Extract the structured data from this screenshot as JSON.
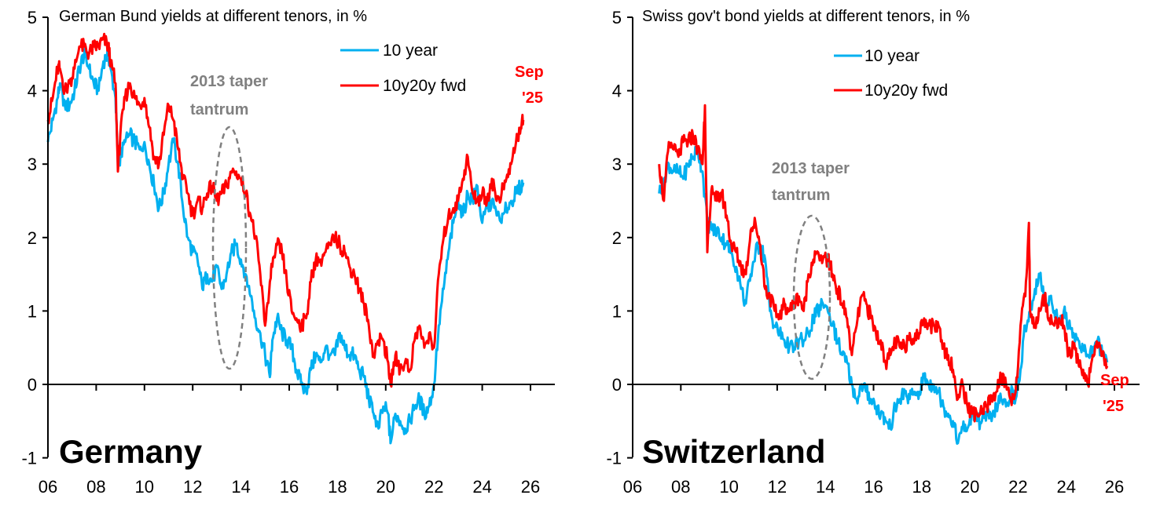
{
  "chart_data": [
    {
      "type": "line",
      "id": "germany",
      "title": "German Bund yields at different tenors, in %",
      "panel_label": "Germany",
      "xlabel": "",
      "ylabel": "",
      "x_ticks": [
        "06",
        "08",
        "10",
        "12",
        "14",
        "16",
        "18",
        "20",
        "22",
        "24",
        "26"
      ],
      "x_tick_years": [
        2006,
        2008,
        2010,
        2012,
        2014,
        2016,
        2018,
        2020,
        2022,
        2024,
        2026
      ],
      "xlim": [
        2006,
        2027
      ],
      "y_ticks": [
        "-1",
        "0",
        "1",
        "2",
        "3",
        "4",
        "5"
      ],
      "ylim": [
        -1,
        5
      ],
      "grid": false,
      "legend": {
        "placement": "top-right",
        "entries": [
          "10 year",
          "10y20y fwd"
        ]
      },
      "annotations": [
        {
          "text_lines": [
            "2013 taper",
            "tantrum"
          ],
          "color": "#808080",
          "target_year": 2013.6,
          "ellipse_y_range": [
            0.2,
            3.5
          ]
        },
        {
          "text_lines": [
            "Sep",
            "'25"
          ],
          "color": "#ff0000"
        }
      ],
      "series": [
        {
          "name": "10 year",
          "color": "#00b0f0",
          "x": [
            2006.0,
            2006.2,
            2006.4,
            2006.5,
            2006.7,
            2006.9,
            2007.1,
            2007.3,
            2007.5,
            2007.7,
            2007.9,
            2008.1,
            2008.3,
            2008.5,
            2008.6,
            2008.8,
            2008.9,
            2009.0,
            2009.2,
            2009.4,
            2009.6,
            2009.8,
            2010.0,
            2010.2,
            2010.4,
            2010.6,
            2010.8,
            2011.0,
            2011.2,
            2011.4,
            2011.6,
            2011.8,
            2012.0,
            2012.2,
            2012.4,
            2012.6,
            2012.8,
            2013.0,
            2013.2,
            2013.4,
            2013.6,
            2013.8,
            2014.0,
            2014.2,
            2014.4,
            2014.6,
            2014.8,
            2015.0,
            2015.2,
            2015.3,
            2015.5,
            2015.7,
            2015.9,
            2016.1,
            2016.3,
            2016.5,
            2016.7,
            2016.9,
            2017.1,
            2017.3,
            2017.5,
            2017.7,
            2017.9,
            2018.1,
            2018.3,
            2018.5,
            2018.7,
            2018.9,
            2019.1,
            2019.3,
            2019.5,
            2019.7,
            2019.9,
            2020.1,
            2020.2,
            2020.4,
            2020.6,
            2020.8,
            2021.0,
            2021.2,
            2021.4,
            2021.6,
            2021.8,
            2022.0,
            2022.2,
            2022.4,
            2022.6,
            2022.8,
            2023.0,
            2023.2,
            2023.4,
            2023.6,
            2023.8,
            2024.0,
            2024.2,
            2024.4,
            2024.6,
            2024.8,
            2025.0,
            2025.2,
            2025.4,
            2025.6,
            2025.7
          ],
          "y": [
            3.3,
            3.6,
            3.9,
            4.1,
            3.8,
            3.8,
            4.0,
            4.3,
            4.5,
            4.3,
            4.1,
            4.0,
            4.4,
            4.5,
            4.3,
            3.9,
            3.0,
            3.1,
            3.3,
            3.4,
            3.3,
            3.2,
            3.3,
            3.0,
            2.7,
            2.4,
            2.6,
            3.0,
            3.3,
            3.0,
            2.4,
            2.0,
            1.8,
            1.7,
            1.3,
            1.5,
            1.4,
            1.6,
            1.3,
            1.5,
            1.8,
            1.9,
            1.7,
            1.5,
            1.2,
            0.9,
            0.7,
            0.4,
            0.1,
            0.6,
            0.9,
            0.7,
            0.6,
            0.5,
            0.2,
            0.0,
            -0.1,
            0.2,
            0.4,
            0.3,
            0.5,
            0.4,
            0.4,
            0.7,
            0.5,
            0.4,
            0.4,
            0.2,
            0.1,
            -0.2,
            -0.4,
            -0.6,
            -0.3,
            -0.4,
            -0.8,
            -0.4,
            -0.5,
            -0.6,
            -0.5,
            -0.3,
            -0.2,
            -0.4,
            -0.3,
            0.0,
            0.8,
            1.3,
            1.8,
            2.2,
            2.5,
            2.3,
            2.6,
            2.5,
            2.7,
            2.2,
            2.4,
            2.5,
            2.3,
            2.2,
            2.4,
            2.5,
            2.6,
            2.7,
            2.75
          ]
        },
        {
          "name": "10y20y fwd",
          "color": "#ff0000",
          "x": [
            2006.0,
            2006.2,
            2006.4,
            2006.5,
            2006.7,
            2006.9,
            2007.1,
            2007.3,
            2007.5,
            2007.7,
            2007.9,
            2008.1,
            2008.3,
            2008.5,
            2008.6,
            2008.8,
            2008.9,
            2009.0,
            2009.2,
            2009.4,
            2009.6,
            2009.8,
            2010.0,
            2010.2,
            2010.4,
            2010.6,
            2010.8,
            2011.0,
            2011.2,
            2011.4,
            2011.6,
            2011.8,
            2012.0,
            2012.2,
            2012.4,
            2012.6,
            2012.8,
            2013.0,
            2013.2,
            2013.4,
            2013.6,
            2013.8,
            2014.0,
            2014.2,
            2014.4,
            2014.6,
            2014.8,
            2015.0,
            2015.2,
            2015.3,
            2015.5,
            2015.7,
            2015.9,
            2016.1,
            2016.3,
            2016.5,
            2016.7,
            2016.9,
            2017.1,
            2017.3,
            2017.5,
            2017.7,
            2017.9,
            2018.1,
            2018.3,
            2018.5,
            2018.7,
            2018.9,
            2019.1,
            2019.3,
            2019.5,
            2019.7,
            2019.9,
            2020.1,
            2020.2,
            2020.4,
            2020.6,
            2020.8,
            2021.0,
            2021.2,
            2021.4,
            2021.6,
            2021.8,
            2022.0,
            2022.2,
            2022.4,
            2022.6,
            2022.8,
            2023.0,
            2023.2,
            2023.4,
            2023.6,
            2023.8,
            2024.0,
            2024.2,
            2024.4,
            2024.6,
            2024.8,
            2025.0,
            2025.2,
            2025.4,
            2025.6,
            2025.7
          ],
          "y": [
            3.6,
            3.9,
            4.3,
            4.3,
            4.0,
            4.1,
            4.3,
            4.6,
            4.6,
            4.5,
            4.6,
            4.6,
            4.7,
            4.6,
            4.4,
            4.1,
            2.9,
            3.4,
            3.9,
            4.1,
            3.9,
            3.8,
            3.9,
            3.5,
            3.1,
            3.0,
            3.4,
            3.8,
            3.6,
            3.2,
            2.8,
            2.6,
            2.3,
            2.5,
            2.4,
            2.6,
            2.7,
            2.5,
            2.6,
            2.7,
            2.9,
            2.9,
            2.8,
            2.6,
            2.3,
            2.0,
            1.5,
            0.8,
            1.4,
            1.6,
            1.9,
            1.8,
            1.4,
            1.0,
            0.9,
            0.8,
            0.9,
            1.4,
            1.7,
            1.7,
            1.8,
            1.9,
            2.0,
            1.9,
            1.8,
            1.6,
            1.5,
            1.3,
            1.1,
            0.8,
            0.4,
            0.6,
            0.6,
            0.3,
            0.0,
            0.4,
            0.2,
            0.3,
            0.2,
            0.6,
            0.8,
            0.5,
            0.7,
            0.5,
            1.5,
            2.0,
            2.3,
            2.4,
            2.5,
            2.8,
            3.1,
            2.6,
            2.5,
            2.6,
            2.5,
            2.8,
            2.5,
            2.6,
            2.8,
            3.0,
            3.3,
            3.5,
            3.6
          ]
        }
      ]
    },
    {
      "type": "line",
      "id": "switzerland",
      "title": "Swiss gov't bond yields at different tenors, in %",
      "panel_label": "Switzerland",
      "xlabel": "",
      "ylabel": "",
      "x_ticks": [
        "06",
        "08",
        "10",
        "12",
        "14",
        "16",
        "18",
        "20",
        "22",
        "24",
        "26"
      ],
      "x_tick_years": [
        2006,
        2008,
        2010,
        2012,
        2014,
        2016,
        2018,
        2020,
        2022,
        2024,
        2026
      ],
      "xlim": [
        2006,
        2027
      ],
      "y_ticks": [
        "-1",
        "0",
        "1",
        "2",
        "3",
        "4",
        "5"
      ],
      "ylim": [
        -1,
        5
      ],
      "grid": false,
      "legend": {
        "placement": "top-right",
        "entries": [
          "10 year",
          "10y20y fwd"
        ]
      },
      "annotations": [
        {
          "text_lines": [
            "2013 taper",
            "tantrum"
          ],
          "color": "#808080",
          "target_year": 2013.5,
          "ellipse_y_range": [
            0.07,
            2.3
          ]
        },
        {
          "text_lines": [
            "Sep",
            "'25"
          ],
          "color": "#ff0000"
        }
      ],
      "series": [
        {
          "name": "10 year",
          "color": "#00b0f0",
          "x": [
            2007.1,
            2007.3,
            2007.5,
            2007.7,
            2007.9,
            2008.1,
            2008.3,
            2008.5,
            2008.7,
            2008.9,
            2009.1,
            2009.3,
            2009.5,
            2009.7,
            2009.9,
            2010.1,
            2010.3,
            2010.5,
            2010.7,
            2010.9,
            2011.1,
            2011.3,
            2011.5,
            2011.7,
            2011.9,
            2012.1,
            2012.3,
            2012.5,
            2012.7,
            2012.9,
            2013.1,
            2013.3,
            2013.5,
            2013.7,
            2013.9,
            2014.1,
            2014.3,
            2014.5,
            2014.7,
            2014.9,
            2015.1,
            2015.3,
            2015.5,
            2015.7,
            2015.9,
            2016.1,
            2016.3,
            2016.5,
            2016.7,
            2016.9,
            2017.1,
            2017.3,
            2017.5,
            2017.7,
            2017.9,
            2018.1,
            2018.3,
            2018.5,
            2018.7,
            2018.9,
            2019.1,
            2019.3,
            2019.5,
            2019.7,
            2019.9,
            2020.1,
            2020.3,
            2020.5,
            2020.7,
            2020.9,
            2021.1,
            2021.3,
            2021.5,
            2021.7,
            2021.9,
            2022.1,
            2022.3,
            2022.5,
            2022.7,
            2022.9,
            2023.1,
            2023.3,
            2023.5,
            2023.7,
            2023.9,
            2024.1,
            2024.3,
            2024.5,
            2024.7,
            2024.9,
            2025.1,
            2025.3,
            2025.5,
            2025.7
          ],
          "y": [
            2.6,
            2.8,
            3.0,
            2.9,
            2.9,
            2.8,
            3.0,
            3.1,
            3.2,
            2.9,
            2.2,
            2.1,
            2.1,
            2.0,
            1.9,
            1.8,
            1.6,
            1.3,
            1.1,
            1.5,
            1.8,
            1.9,
            1.7,
            1.0,
            0.8,
            0.7,
            0.6,
            0.5,
            0.5,
            0.6,
            0.6,
            0.7,
            0.9,
            1.0,
            1.1,
            1.0,
            0.8,
            0.6,
            0.4,
            0.3,
            0.0,
            -0.2,
            0.0,
            -0.1,
            -0.2,
            -0.3,
            -0.4,
            -0.5,
            -0.6,
            -0.3,
            -0.2,
            -0.1,
            -0.2,
            -0.1,
            -0.1,
            0.1,
            0.0,
            0.0,
            -0.1,
            -0.3,
            -0.4,
            -0.5,
            -0.8,
            -0.6,
            -0.6,
            -0.4,
            -0.5,
            -0.5,
            -0.4,
            -0.5,
            -0.3,
            -0.2,
            -0.3,
            -0.1,
            -0.2,
            0.2,
            0.8,
            1.0,
            1.3,
            1.5,
            1.1,
            1.2,
            1.0,
            0.9,
            1.0,
            0.8,
            0.7,
            0.6,
            0.5,
            0.4,
            0.5,
            0.6,
            0.4,
            0.3
          ]
        },
        {
          "name": "10y20y fwd",
          "color": "#ff0000",
          "x": [
            2007.1,
            2007.3,
            2007.5,
            2007.7,
            2007.9,
            2008.1,
            2008.3,
            2008.5,
            2008.7,
            2008.9,
            2009.0,
            2009.1,
            2009.3,
            2009.5,
            2009.7,
            2009.9,
            2010.1,
            2010.3,
            2010.5,
            2010.7,
            2010.9,
            2011.1,
            2011.3,
            2011.5,
            2011.7,
            2011.9,
            2012.1,
            2012.3,
            2012.5,
            2012.7,
            2012.9,
            2013.1,
            2013.3,
            2013.5,
            2013.7,
            2013.9,
            2014.1,
            2014.3,
            2014.5,
            2014.7,
            2014.9,
            2015.1,
            2015.3,
            2015.5,
            2015.7,
            2015.9,
            2016.1,
            2016.3,
            2016.5,
            2016.7,
            2016.9,
            2017.1,
            2017.3,
            2017.5,
            2017.7,
            2017.9,
            2018.1,
            2018.3,
            2018.5,
            2018.7,
            2018.9,
            2019.1,
            2019.3,
            2019.5,
            2019.7,
            2019.9,
            2020.1,
            2020.3,
            2020.5,
            2020.7,
            2020.9,
            2021.1,
            2021.3,
            2021.5,
            2021.7,
            2021.9,
            2022.1,
            2022.3,
            2022.45,
            2022.5,
            2022.7,
            2022.9,
            2023.1,
            2023.3,
            2023.5,
            2023.7,
            2023.9,
            2024.1,
            2024.3,
            2024.5,
            2024.7,
            2024.9,
            2025.1,
            2025.3,
            2025.5,
            2025.7
          ],
          "y": [
            3.0,
            2.5,
            3.3,
            3.2,
            3.1,
            3.3,
            3.3,
            3.4,
            3.2,
            3.0,
            3.8,
            1.8,
            2.7,
            2.5,
            2.6,
            2.3,
            1.9,
            1.8,
            1.6,
            1.5,
            2.1,
            2.2,
            1.9,
            1.3,
            1.2,
            1.0,
            0.9,
            1.1,
            1.0,
            1.1,
            1.2,
            1.0,
            1.5,
            1.7,
            1.8,
            1.7,
            1.7,
            1.5,
            1.3,
            1.1,
            0.9,
            0.4,
            0.8,
            1.2,
            1.1,
            0.9,
            0.7,
            0.6,
            0.3,
            0.4,
            0.6,
            0.5,
            0.5,
            0.7,
            0.6,
            0.7,
            0.9,
            0.8,
            0.8,
            0.8,
            0.5,
            0.4,
            0.2,
            -0.2,
            0.0,
            -0.3,
            -0.4,
            -0.4,
            -0.4,
            -0.3,
            -0.2,
            -0.1,
            0.1,
            0.0,
            -0.2,
            -0.1,
            0.8,
            1.2,
            2.2,
            1.0,
            0.8,
            1.0,
            1.2,
            0.9,
            0.8,
            0.9,
            0.8,
            0.4,
            0.5,
            0.3,
            0.2,
            0.0,
            0.4,
            0.5,
            0.4,
            0.25
          ]
        }
      ]
    }
  ]
}
